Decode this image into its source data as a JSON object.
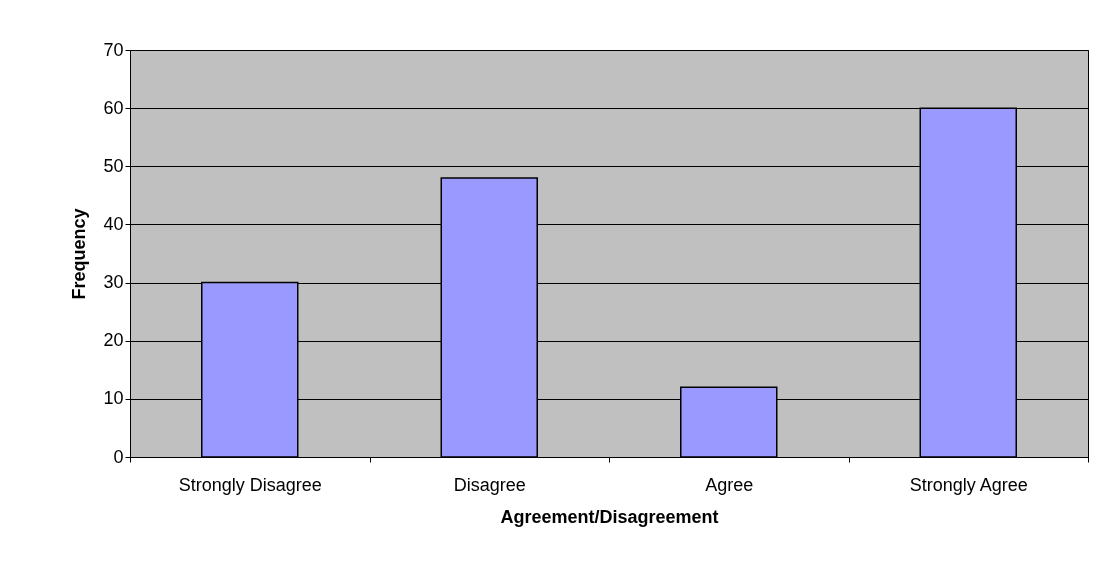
{
  "chart_data": {
    "type": "bar",
    "xlabel": "Agreement/Disagreement",
    "ylabel": "Frequency",
    "categories": [
      "Strongly Disagree",
      "Disagree",
      "Agree",
      "Strongly Agree"
    ],
    "series": [
      {
        "color": "#9999ff",
        "values": [
          30,
          48,
          12,
          60
        ]
      }
    ],
    "ylim": [
      0,
      70
    ],
    "yticks": [
      0,
      10,
      20,
      30,
      40,
      50,
      60,
      70
    ],
    "grid": "y",
    "legend": false
  }
}
